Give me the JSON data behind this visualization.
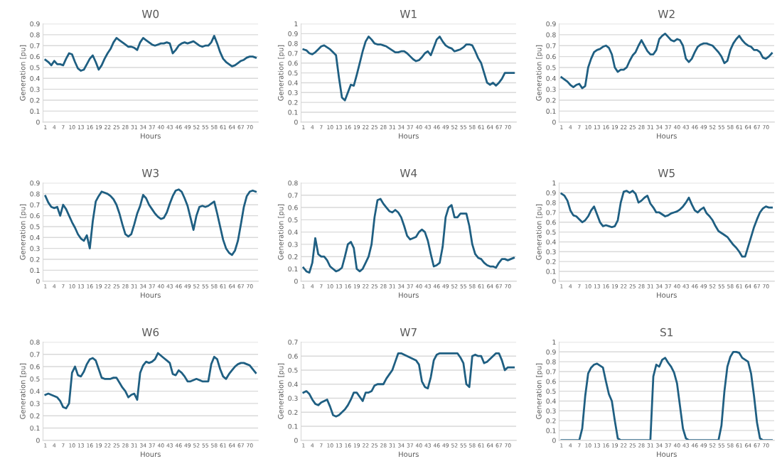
{
  "chart_data": [
    {
      "type": "line",
      "title": "W0",
      "xlabel": "Hours",
      "ylabel": "Generation [pu]",
      "grid": "y",
      "ylim": [
        0,
        0.9
      ],
      "yticks": [
        0,
        0.1,
        0.2,
        0.3,
        0.4,
        0.5,
        0.6,
        0.7,
        0.8,
        0.9
      ],
      "categories": [
        "1",
        null,
        null,
        "4",
        null,
        null,
        "7",
        null,
        null,
        "10",
        null,
        null,
        "13",
        null,
        null,
        "16",
        null,
        null,
        "19",
        null,
        null,
        "22",
        null,
        null,
        "25",
        null,
        null,
        "28",
        null,
        null,
        "31",
        null,
        null,
        "34",
        null,
        null,
        "37",
        null,
        null,
        "40",
        null,
        null,
        "43",
        null,
        null,
        "46",
        null,
        null,
        "49",
        null,
        null,
        "52",
        null,
        null,
        "55",
        null,
        null,
        "58",
        null,
        null,
        "61",
        null,
        null,
        "64",
        null,
        null,
        "67",
        null,
        null,
        "70",
        null,
        null
      ],
      "series": [
        {
          "color": "#1f5f82",
          "values": [
            0.57,
            0.55,
            0.52,
            0.56,
            0.53,
            0.53,
            0.52,
            0.58,
            0.63,
            0.62,
            0.55,
            0.49,
            0.47,
            0.48,
            0.53,
            0.58,
            0.61,
            0.55,
            0.48,
            0.52,
            0.58,
            0.63,
            0.67,
            0.73,
            0.77,
            0.75,
            0.73,
            0.71,
            0.69,
            0.69,
            0.68,
            0.66,
            0.73,
            0.77,
            0.75,
            0.73,
            0.71,
            0.7,
            0.71,
            0.72,
            0.72,
            0.73,
            0.72,
            0.63,
            0.66,
            0.7,
            0.72,
            0.73,
            0.72,
            0.73,
            0.74,
            0.72,
            0.7,
            0.69,
            0.7,
            0.7,
            0.73,
            0.79,
            0.72,
            0.64,
            0.58,
            0.55,
            0.53,
            0.51,
            0.52,
            0.54,
            0.56,
            0.57,
            0.59,
            0.6,
            0.6,
            0.59
          ]
        }
      ]
    },
    {
      "type": "line",
      "title": "W1",
      "xlabel": "Hours",
      "ylabel": "Generation [pu]",
      "grid": "y",
      "ylim": [
        0,
        1
      ],
      "yticks": [
        0,
        0.1,
        0.2,
        0.3,
        0.4,
        0.5,
        0.6,
        0.7,
        0.8,
        0.9,
        1
      ],
      "categories": [
        "1",
        null,
        null,
        "4",
        null,
        null,
        "7",
        null,
        null,
        "10",
        null,
        null,
        "13",
        null,
        null,
        "16",
        null,
        null,
        "19",
        null,
        null,
        "22",
        null,
        null,
        "25",
        null,
        null,
        "28",
        null,
        null,
        "31",
        null,
        null,
        "34",
        null,
        null,
        "37",
        null,
        null,
        "40",
        null,
        null,
        "43",
        null,
        null,
        "46",
        null,
        null,
        "49",
        null,
        null,
        "52",
        null,
        null,
        "55",
        null,
        null,
        "58",
        null,
        null,
        "61",
        null,
        null,
        "64",
        null,
        null,
        "67",
        null,
        null,
        "70",
        null,
        null
      ],
      "series": [
        {
          "color": "#1f5f82",
          "values": [
            0.74,
            0.73,
            0.7,
            0.69,
            0.71,
            0.74,
            0.77,
            0.78,
            0.76,
            0.74,
            0.71,
            0.68,
            0.45,
            0.25,
            0.22,
            0.3,
            0.38,
            0.37,
            0.48,
            0.6,
            0.72,
            0.82,
            0.87,
            0.84,
            0.8,
            0.79,
            0.79,
            0.78,
            0.77,
            0.75,
            0.73,
            0.71,
            0.71,
            0.72,
            0.72,
            0.7,
            0.67,
            0.64,
            0.62,
            0.63,
            0.66,
            0.7,
            0.72,
            0.68,
            0.76,
            0.84,
            0.87,
            0.82,
            0.78,
            0.76,
            0.75,
            0.72,
            0.73,
            0.74,
            0.76,
            0.79,
            0.79,
            0.78,
            0.72,
            0.65,
            0.6,
            0.5,
            0.4,
            0.38,
            0.4,
            0.37,
            0.4,
            0.44,
            0.5,
            0.5,
            0.5,
            0.5
          ]
        }
      ]
    },
    {
      "type": "line",
      "title": "W2",
      "xlabel": "Hours",
      "ylabel": "Generation [pu]",
      "grid": "y",
      "ylim": [
        0,
        0.9
      ],
      "yticks": [
        0,
        0.1,
        0.2,
        0.3,
        0.4,
        0.5,
        0.6,
        0.7,
        0.8,
        0.9
      ],
      "categories": [
        "1",
        null,
        null,
        "4",
        null,
        null,
        "7",
        null,
        null,
        "10",
        null,
        null,
        "13",
        null,
        null,
        "16",
        null,
        null,
        "19",
        null,
        null,
        "22",
        null,
        null,
        "25",
        null,
        null,
        "28",
        null,
        null,
        "31",
        null,
        null,
        "34",
        null,
        null,
        "37",
        null,
        null,
        "40",
        null,
        null,
        "43",
        null,
        null,
        "46",
        null,
        null,
        "49",
        null,
        null,
        "52",
        null,
        null,
        "55",
        null,
        null,
        "58",
        null,
        null,
        "61",
        null,
        null,
        "64",
        null,
        null,
        "67",
        null,
        null,
        "70",
        null,
        null
      ],
      "series": [
        {
          "color": "#1f5f82",
          "values": [
            0.41,
            0.39,
            0.37,
            0.34,
            0.32,
            0.34,
            0.35,
            0.31,
            0.33,
            0.5,
            0.58,
            0.64,
            0.66,
            0.67,
            0.69,
            0.7,
            0.68,
            0.62,
            0.5,
            0.46,
            0.48,
            0.48,
            0.5,
            0.56,
            0.61,
            0.64,
            0.7,
            0.75,
            0.7,
            0.65,
            0.62,
            0.62,
            0.66,
            0.76,
            0.79,
            0.81,
            0.78,
            0.75,
            0.74,
            0.76,
            0.75,
            0.7,
            0.58,
            0.55,
            0.58,
            0.64,
            0.69,
            0.71,
            0.72,
            0.72,
            0.71,
            0.7,
            0.67,
            0.64,
            0.6,
            0.54,
            0.56,
            0.66,
            0.72,
            0.76,
            0.79,
            0.75,
            0.72,
            0.7,
            0.69,
            0.66,
            0.66,
            0.64,
            0.59,
            0.58,
            0.6,
            0.63
          ]
        }
      ]
    },
    {
      "type": "line",
      "title": "W3",
      "xlabel": "Hours",
      "ylabel": "Generation [pu]",
      "grid": "y",
      "ylim": [
        0,
        0.9
      ],
      "yticks": [
        0,
        0.1,
        0.2,
        0.3,
        0.4,
        0.5,
        0.6,
        0.7,
        0.8,
        0.9
      ],
      "categories": [
        "1",
        null,
        null,
        "4",
        null,
        null,
        "7",
        null,
        null,
        "10",
        null,
        null,
        "13",
        null,
        null,
        "16",
        null,
        null,
        "19",
        null,
        null,
        "22",
        null,
        null,
        "25",
        null,
        null,
        "28",
        null,
        null,
        "31",
        null,
        null,
        "34",
        null,
        null,
        "37",
        null,
        null,
        "40",
        null,
        null,
        "43",
        null,
        null,
        "46",
        null,
        null,
        "49",
        null,
        null,
        "52",
        null,
        null,
        "55",
        null,
        null,
        "58",
        null,
        null,
        "61",
        null,
        null,
        "64",
        null,
        null,
        "67",
        null,
        null,
        "70",
        null,
        null
      ],
      "series": [
        {
          "color": "#1f5f82",
          "values": [
            0.78,
            0.72,
            0.68,
            0.67,
            0.68,
            0.6,
            0.7,
            0.66,
            0.6,
            0.54,
            0.49,
            0.43,
            0.39,
            0.37,
            0.42,
            0.3,
            0.55,
            0.73,
            0.78,
            0.82,
            0.81,
            0.8,
            0.78,
            0.75,
            0.7,
            0.62,
            0.52,
            0.43,
            0.41,
            0.43,
            0.52,
            0.62,
            0.69,
            0.79,
            0.76,
            0.7,
            0.66,
            0.62,
            0.59,
            0.57,
            0.58,
            0.63,
            0.71,
            0.78,
            0.83,
            0.84,
            0.82,
            0.76,
            0.69,
            0.58,
            0.47,
            0.6,
            0.68,
            0.69,
            0.68,
            0.69,
            0.71,
            0.73,
            0.62,
            0.5,
            0.38,
            0.3,
            0.26,
            0.24,
            0.28,
            0.37,
            0.52,
            0.68,
            0.78,
            0.82,
            0.83,
            0.82
          ]
        }
      ]
    },
    {
      "type": "line",
      "title": "W4",
      "xlabel": "Hours",
      "ylabel": "Generation [pu]",
      "grid": "y",
      "ylim": [
        0,
        0.8
      ],
      "yticks": [
        0,
        0.1,
        0.2,
        0.3,
        0.4,
        0.5,
        0.6,
        0.7,
        0.8
      ],
      "categories": [
        "1",
        null,
        null,
        "4",
        null,
        null,
        "7",
        null,
        null,
        "10",
        null,
        null,
        "13",
        null,
        null,
        "16",
        null,
        null,
        "19",
        null,
        null,
        "22",
        null,
        null,
        "25",
        null,
        null,
        "28",
        null,
        null,
        "31",
        null,
        null,
        "34",
        null,
        null,
        "37",
        null,
        null,
        "40",
        null,
        null,
        "43",
        null,
        null,
        "46",
        null,
        null,
        "49",
        null,
        null,
        "52",
        null,
        null,
        "55",
        null,
        null,
        "58",
        null,
        null,
        "61",
        null,
        null,
        "64",
        null,
        null,
        "67",
        null,
        null,
        "70",
        null,
        null
      ],
      "series": [
        {
          "color": "#1f5f82",
          "values": [
            0.11,
            0.08,
            0.07,
            0.15,
            0.35,
            0.22,
            0.2,
            0.2,
            0.17,
            0.12,
            0.1,
            0.08,
            0.09,
            0.11,
            0.2,
            0.3,
            0.32,
            0.27,
            0.1,
            0.08,
            0.1,
            0.15,
            0.2,
            0.3,
            0.52,
            0.66,
            0.67,
            0.63,
            0.6,
            0.57,
            0.56,
            0.58,
            0.56,
            0.52,
            0.45,
            0.37,
            0.34,
            0.35,
            0.36,
            0.4,
            0.42,
            0.4,
            0.33,
            0.22,
            0.12,
            0.13,
            0.15,
            0.28,
            0.52,
            0.6,
            0.62,
            0.52,
            0.52,
            0.55,
            0.55,
            0.55,
            0.45,
            0.3,
            0.22,
            0.19,
            0.18,
            0.15,
            0.13,
            0.12,
            0.12,
            0.11,
            0.15,
            0.18,
            0.18,
            0.17,
            0.18,
            0.19
          ]
        }
      ]
    },
    {
      "type": "line",
      "title": "W5",
      "xlabel": "Hours",
      "ylabel": "Generation [pu]",
      "grid": "y",
      "ylim": [
        0,
        1
      ],
      "yticks": [
        0,
        0.1,
        0.2,
        0.3,
        0.4,
        0.5,
        0.6,
        0.7,
        0.8,
        0.9,
        1
      ],
      "categories": [
        "1",
        null,
        null,
        "4",
        null,
        null,
        "7",
        null,
        null,
        "10",
        null,
        null,
        "13",
        null,
        null,
        "16",
        null,
        null,
        "19",
        null,
        null,
        "22",
        null,
        null,
        "25",
        null,
        null,
        "28",
        null,
        null,
        "31",
        null,
        null,
        "34",
        null,
        null,
        "37",
        null,
        null,
        "40",
        null,
        null,
        "43",
        null,
        null,
        "46",
        null,
        null,
        "49",
        null,
        null,
        "52",
        null,
        null,
        "55",
        null,
        null,
        "58",
        null,
        null,
        "61",
        null,
        null,
        "64",
        null,
        null,
        "67",
        null,
        null,
        "70",
        null,
        null
      ],
      "series": [
        {
          "color": "#1f5f82",
          "values": [
            0.89,
            0.87,
            0.82,
            0.72,
            0.67,
            0.66,
            0.63,
            0.6,
            0.62,
            0.66,
            0.72,
            0.76,
            0.68,
            0.6,
            0.56,
            0.57,
            0.56,
            0.55,
            0.56,
            0.62,
            0.8,
            0.91,
            0.92,
            0.9,
            0.92,
            0.89,
            0.8,
            0.82,
            0.85,
            0.87,
            0.79,
            0.75,
            0.7,
            0.7,
            0.68,
            0.66,
            0.67,
            0.69,
            0.7,
            0.71,
            0.73,
            0.76,
            0.8,
            0.85,
            0.78,
            0.72,
            0.7,
            0.73,
            0.75,
            0.69,
            0.66,
            0.62,
            0.56,
            0.51,
            0.49,
            0.47,
            0.45,
            0.41,
            0.37,
            0.34,
            0.3,
            0.25,
            0.25,
            0.35,
            0.45,
            0.55,
            0.63,
            0.7,
            0.74,
            0.76,
            0.75,
            0.75
          ]
        }
      ]
    },
    {
      "type": "line",
      "title": "W6",
      "xlabel": "Hours",
      "ylabel": "Generation [pu]",
      "grid": "y",
      "ylim": [
        0,
        0.8
      ],
      "yticks": [
        0,
        0.1,
        0.2,
        0.3,
        0.4,
        0.5,
        0.6,
        0.7,
        0.8
      ],
      "categories": [
        "1",
        null,
        null,
        "4",
        null,
        null,
        "7",
        null,
        null,
        "10",
        null,
        null,
        "13",
        null,
        null,
        "16",
        null,
        null,
        "19",
        null,
        null,
        "22",
        null,
        null,
        "25",
        null,
        null,
        "28",
        null,
        null,
        "31",
        null,
        null,
        "34",
        null,
        null,
        "37",
        null,
        null,
        "40",
        null,
        null,
        "43",
        null,
        null,
        "46",
        null,
        null,
        "49",
        null,
        null,
        "52",
        null,
        null,
        "55",
        null,
        null,
        "58",
        null,
        null,
        "61",
        null,
        null,
        "64",
        null,
        null,
        "67",
        null,
        null,
        "70",
        null,
        null
      ],
      "series": [
        {
          "color": "#1f5f82",
          "values": [
            0.37,
            0.38,
            0.37,
            0.36,
            0.35,
            0.32,
            0.27,
            0.26,
            0.3,
            0.55,
            0.6,
            0.53,
            0.52,
            0.56,
            0.62,
            0.66,
            0.67,
            0.65,
            0.58,
            0.51,
            0.5,
            0.5,
            0.5,
            0.51,
            0.51,
            0.47,
            0.43,
            0.4,
            0.35,
            0.37,
            0.38,
            0.33,
            0.55,
            0.61,
            0.64,
            0.63,
            0.64,
            0.66,
            0.71,
            0.69,
            0.67,
            0.65,
            0.63,
            0.54,
            0.53,
            0.57,
            0.55,
            0.52,
            0.48,
            0.48,
            0.49,
            0.5,
            0.49,
            0.48,
            0.48,
            0.48,
            0.62,
            0.68,
            0.66,
            0.58,
            0.52,
            0.5,
            0.54,
            0.57,
            0.6,
            0.62,
            0.63,
            0.63,
            0.62,
            0.61,
            0.58,
            0.55
          ]
        }
      ]
    },
    {
      "type": "line",
      "title": "W7",
      "xlabel": "Hours",
      "ylabel": "Generation [pu]",
      "grid": "y",
      "ylim": [
        0,
        0.7
      ],
      "yticks": [
        0,
        0.1,
        0.2,
        0.3,
        0.4,
        0.5,
        0.6,
        0.7
      ],
      "categories": [
        "1",
        null,
        null,
        "4",
        null,
        null,
        "7",
        null,
        null,
        "10",
        null,
        null,
        "13",
        null,
        null,
        "16",
        null,
        null,
        "19",
        null,
        null,
        "22",
        null,
        null,
        "25",
        null,
        null,
        "28",
        null,
        null,
        "31",
        null,
        null,
        "34",
        null,
        null,
        "37",
        null,
        null,
        "40",
        null,
        null,
        "43",
        null,
        null,
        "46",
        null,
        null,
        "49",
        null,
        null,
        "52",
        null,
        null,
        "55",
        null,
        null,
        "58",
        null,
        null,
        "61",
        null,
        null,
        "64",
        null,
        null,
        "67",
        null,
        null,
        "70",
        null,
        null
      ],
      "series": [
        {
          "color": "#1f5f82",
          "values": [
            0.34,
            0.35,
            0.33,
            0.29,
            0.26,
            0.25,
            0.27,
            0.28,
            0.29,
            0.24,
            0.18,
            0.17,
            0.18,
            0.2,
            0.22,
            0.25,
            0.29,
            0.34,
            0.34,
            0.31,
            0.28,
            0.34,
            0.34,
            0.35,
            0.39,
            0.4,
            0.4,
            0.4,
            0.44,
            0.47,
            0.5,
            0.56,
            0.62,
            0.62,
            0.61,
            0.6,
            0.59,
            0.58,
            0.57,
            0.54,
            0.42,
            0.38,
            0.37,
            0.45,
            0.57,
            0.61,
            0.62,
            0.62,
            0.62,
            0.62,
            0.62,
            0.62,
            0.62,
            0.59,
            0.55,
            0.4,
            0.38,
            0.6,
            0.61,
            0.6,
            0.6,
            0.55,
            0.56,
            0.58,
            0.6,
            0.62,
            0.62,
            0.57,
            0.5,
            0.52,
            0.52,
            0.52
          ]
        }
      ]
    },
    {
      "type": "line",
      "title": "S1",
      "xlabel": "Hours",
      "ylabel": "Generation [pu]",
      "grid": "y",
      "ylim": [
        0,
        1
      ],
      "yticks": [
        0,
        0.1,
        0.2,
        0.3,
        0.4,
        0.5,
        0.6,
        0.7,
        0.8,
        0.9,
        1
      ],
      "categories": [
        "1",
        null,
        null,
        "4",
        null,
        null,
        "7",
        null,
        null,
        "10",
        null,
        null,
        "13",
        null,
        null,
        "16",
        null,
        null,
        "19",
        null,
        null,
        "22",
        null,
        null,
        "25",
        null,
        null,
        "28",
        null,
        null,
        "31",
        null,
        null,
        "34",
        null,
        null,
        "37",
        null,
        null,
        "40",
        null,
        null,
        "43",
        null,
        null,
        "46",
        null,
        null,
        "49",
        null,
        null,
        "52",
        null,
        null,
        "55",
        null,
        null,
        "58",
        null,
        null,
        "61",
        null,
        null,
        "64",
        null,
        null,
        "67",
        null,
        null,
        "70",
        null,
        null
      ],
      "series": [
        {
          "color": "#1f5f82",
          "values": [
            0,
            0,
            0,
            0,
            0,
            0,
            0,
            0.12,
            0.45,
            0.68,
            0.74,
            0.77,
            0.78,
            0.76,
            0.74,
            0.6,
            0.47,
            0.4,
            0.2,
            0.02,
            0,
            0,
            0,
            0,
            0,
            0,
            0,
            0,
            0,
            0,
            0,
            0.65,
            0.77,
            0.75,
            0.82,
            0.84,
            0.79,
            0.75,
            0.69,
            0.58,
            0.35,
            0.12,
            0.02,
            0,
            0,
            0,
            0,
            0,
            0,
            0,
            0,
            0,
            0,
            0,
            0.15,
            0.5,
            0.75,
            0.85,
            0.9,
            0.9,
            0.89,
            0.84,
            0.82,
            0.8,
            0.68,
            0.45,
            0.18,
            0.02,
            0,
            0,
            0,
            0
          ]
        }
      ]
    }
  ]
}
